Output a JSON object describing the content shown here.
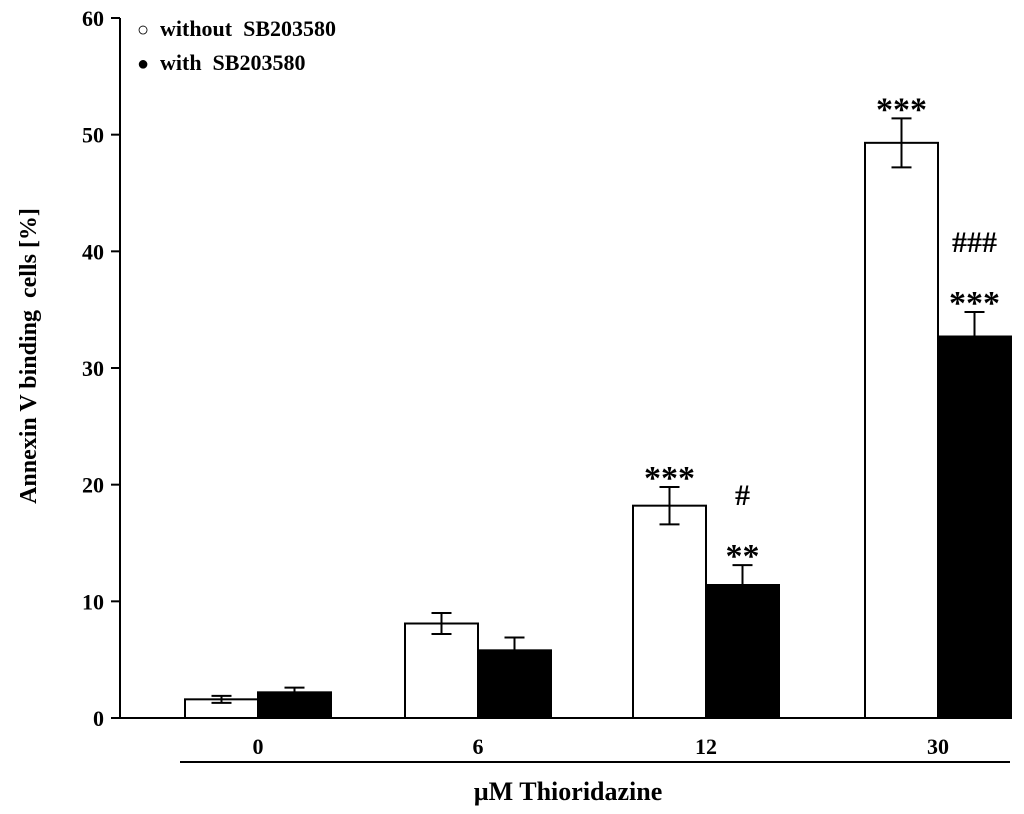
{
  "chart_data": {
    "type": "bar",
    "title": "",
    "xlabel": "µM Thioridazine",
    "ylabel": "Annexin V binding  cells [%]",
    "categories": [
      "0",
      "6",
      "12",
      "30"
    ],
    "ylim": [
      0,
      60
    ],
    "yticks": [
      0,
      10,
      20,
      30,
      40,
      50,
      60
    ],
    "legend_position": "top-left",
    "series": [
      {
        "name": "without  SB203580",
        "marker": "○",
        "fill": "#ffffff",
        "values": [
          1.6,
          8.1,
          18.2,
          49.3
        ],
        "errors": [
          0.3,
          0.9,
          1.6,
          2.1
        ],
        "annotations": [
          "",
          "",
          "***",
          "***"
        ]
      },
      {
        "name": "with  SB203580",
        "marker": "●",
        "fill": "#000000",
        "values": [
          2.2,
          5.8,
          11.4,
          32.7
        ],
        "errors": [
          0.4,
          1.1,
          1.7,
          2.1
        ],
        "annotations": [
          "",
          "",
          "#\n**",
          "###\n***"
        ]
      }
    ]
  }
}
